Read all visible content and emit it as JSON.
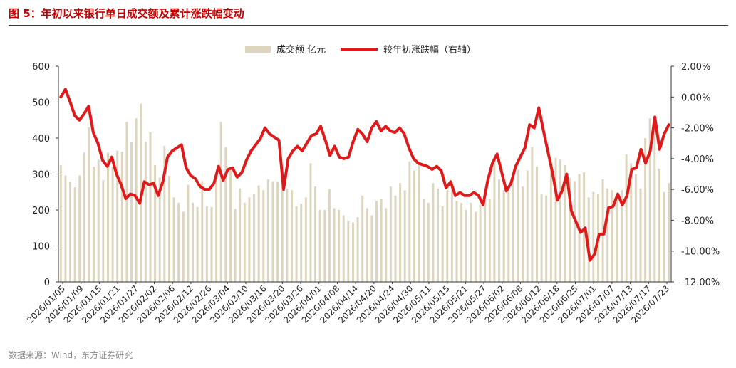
{
  "title": "图 5：年初以来银行单日成交额及累计涨跌幅变动",
  "source": "数据来源：Wind，东方证券研究",
  "colors": {
    "bar": "#ddd5bd",
    "line": "#e01a1a",
    "title": "#c00000"
  },
  "chart_data": {
    "type": "bar+line",
    "legend_position": "top-center",
    "grid": false,
    "x_tick_labels": [
      "2026/01/05",
      "2026/01/09",
      "2026/01/15",
      "2026/01/21",
      "2026/01/27",
      "2026/02/02",
      "2026/02/06",
      "2026/02/12",
      "2026/02/26",
      "2026/03/04",
      "2026/03/10",
      "2026/03/16",
      "2026/03/20",
      "2026/03/26",
      "2026/04/01",
      "2026/04/08",
      "2026/04/14",
      "2026/04/20",
      "2026/04/24",
      "2026/04/30",
      "2026/05/11",
      "2026/05/15",
      "2026/05/21",
      "2026/05/27",
      "2026/06/02",
      "2026/06/08",
      "2026/06/12",
      "2026/06/18",
      "2026/06/25",
      "2026/07/01",
      "2026/07/07",
      "2026/07/13",
      "2026/07/17",
      "2026/07/23"
    ],
    "left_axis": {
      "label": "",
      "min": 0,
      "max": 600,
      "ticks": [
        "0",
        "100",
        "200",
        "300",
        "400",
        "500",
        "600"
      ]
    },
    "right_axis": {
      "label": "",
      "min": -12,
      "max": 2,
      "ticks": [
        "-12.00%",
        "-10.00%",
        "-8.00%",
        "-6.00%",
        "-4.00%",
        "-2.00%",
        "0.00%",
        "2.00%"
      ]
    },
    "series": [
      {
        "name": "成交额 亿元",
        "type": "bar",
        "axis": "left",
        "values": [
          325,
          296,
          278,
          263,
          296,
          360,
          430,
          320,
          340,
          283,
          360,
          320,
          365,
          362,
          445,
          388,
          455,
          496,
          390,
          416,
          325,
          290,
          378,
          295,
          235,
          220,
          195,
          270,
          220,
          208,
          280,
          210,
          208,
          295,
          445,
          375,
          310,
          203,
          260,
          220,
          235,
          245,
          268,
          255,
          285,
          280,
          278,
          265,
          260,
          255,
          210,
          218,
          235,
          330,
          265,
          200,
          200,
          258,
          205,
          200,
          185,
          170,
          165,
          180,
          240,
          205,
          185,
          225,
          230,
          205,
          265,
          240,
          275,
          255,
          335,
          310,
          330,
          230,
          220,
          275,
          260,
          210,
          255,
          265,
          225,
          220,
          200,
          220,
          195,
          215,
          225,
          230,
          345,
          285,
          255,
          260,
          300,
          312,
          265,
          310,
          375,
          320,
          245,
          240,
          340,
          345,
          340,
          325,
          290,
          280,
          300,
          305,
          235,
          250,
          245,
          285,
          260,
          255,
          235,
          255,
          355,
          330,
          300,
          260,
          400,
          455,
          460,
          315,
          250,
          275
        ]
      },
      {
        "name": "较年初涨跌幅（右轴）",
        "type": "line",
        "axis": "right",
        "values": [
          0.0,
          0.5,
          -0.3,
          -1.2,
          -1.5,
          -1.1,
          -0.6,
          -2.3,
          -3.0,
          -4.1,
          -4.5,
          -3.9,
          -5.0,
          -5.7,
          -6.6,
          -6.3,
          -6.4,
          -6.9,
          -5.5,
          -5.7,
          -5.6,
          -6.4,
          -5.5,
          -3.9,
          -3.5,
          -3.3,
          -3.1,
          -4.6,
          -5.1,
          -5.3,
          -5.8,
          -6.0,
          -6.0,
          -5.6,
          -4.5,
          -5.4,
          -4.7,
          -4.6,
          -5.2,
          -4.9,
          -4.1,
          -3.5,
          -3.1,
          -2.7,
          -2.0,
          -2.4,
          -2.6,
          -2.8,
          -6.0,
          -4.0,
          -3.5,
          -3.2,
          -3.5,
          -3.0,
          -2.5,
          -2.4,
          -1.9,
          -2.8,
          -3.8,
          -3.2,
          -3.9,
          -4.0,
          -3.9,
          -2.9,
          -2.1,
          -2.4,
          -2.9,
          -2.0,
          -1.6,
          -2.2,
          -1.9,
          -2.2,
          -2.3,
          -2.0,
          -2.4,
          -3.3,
          -4.0,
          -4.3,
          -4.4,
          -4.5,
          -4.7,
          -4.5,
          -4.8,
          -5.9,
          -5.5,
          -6.4,
          -6.2,
          -6.4,
          -6.4,
          -6.2,
          -6.4,
          -7.0,
          -5.4,
          -4.3,
          -3.7,
          -4.9,
          -6.1,
          -5.6,
          -4.5,
          -3.9,
          -3.3,
          -1.8,
          -2.0,
          -0.7,
          -2.2,
          -3.6,
          -5.0,
          -6.7,
          -6.1,
          -5.0,
          -7.4,
          -8.1,
          -8.8,
          -8.5,
          -10.6,
          -10.2,
          -8.9,
          -8.9,
          -7.2,
          -7.1,
          -6.3,
          -7.0,
          -6.4,
          -4.7,
          -4.6,
          -3.4,
          -4.3,
          -3.5,
          -1.3,
          -3.4,
          -2.4,
          -1.8
        ]
      }
    ]
  }
}
